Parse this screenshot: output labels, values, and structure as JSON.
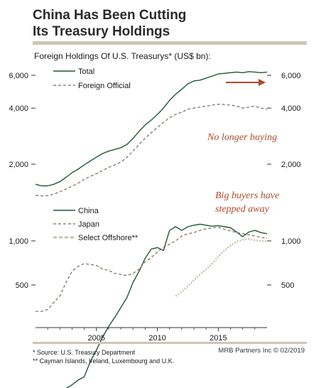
{
  "header": {
    "title_line1": "China Has Been Cutting",
    "title_line2": "Its Treasury Holdings",
    "subtitle": "Foreign Holdings Of U.S. Treasurys* (US$ bn):"
  },
  "colors": {
    "rule": "#cdc6b4",
    "total": "#1e5a32",
    "foreign_official": "#7a6a5a",
    "china": "#1e5a32",
    "japan": "#7a6a5a",
    "select_offshore": "#c9c2ae",
    "annotation": "#b0492a"
  },
  "annotations": {
    "no_longer_buying": "No longer buying",
    "big_buyers_line1": "Big buyers have",
    "big_buyers_line2": "stepped away"
  },
  "footnotes": {
    "note1": "*  Source: U.S. Treasury Department",
    "note2": "** Cayman Islands, Ireland, Luxembourg and U.K.",
    "credit": "MRB Partners Inc © 02/2019"
  },
  "chart_data": [
    {
      "type": "line",
      "scale": "log",
      "yticks": [
        2000,
        4000,
        6000
      ],
      "ytick_labels": [
        "2,000",
        "4,000",
        "6,000"
      ],
      "series": [
        {
          "name": "Total",
          "style": "solid",
          "x": [
            2000.0,
            2000.5,
            2001.0,
            2001.5,
            2002.0,
            2002.5,
            2003.0,
            2003.5,
            2004.0,
            2004.5,
            2005.0,
            2005.5,
            2006.0,
            2006.5,
            2007.0,
            2007.5,
            2008.0,
            2008.5,
            2009.0,
            2009.5,
            2010.0,
            2010.5,
            2011.0,
            2011.5,
            2012.0,
            2012.5,
            2013.0,
            2013.5,
            2014.0,
            2014.5,
            2015.0,
            2015.5,
            2016.0,
            2016.5,
            2017.0,
            2017.5,
            2018.0,
            2018.5,
            2019.0
          ],
          "y": [
            1560,
            1530,
            1530,
            1560,
            1610,
            1700,
            1800,
            1880,
            1980,
            2080,
            2180,
            2280,
            2350,
            2400,
            2450,
            2550,
            2750,
            3000,
            3250,
            3450,
            3700,
            4000,
            4400,
            4750,
            5050,
            5400,
            5600,
            5650,
            5800,
            5950,
            6100,
            6150,
            6200,
            6250,
            6200,
            6280,
            6250,
            6200,
            6250
          ]
        },
        {
          "name": "Foreign Official",
          "style": "dashed",
          "x": [
            2000.0,
            2000.5,
            2001.0,
            2001.5,
            2002.0,
            2002.5,
            2003.0,
            2003.5,
            2004.0,
            2004.5,
            2005.0,
            2005.5,
            2006.0,
            2006.5,
            2007.0,
            2007.5,
            2008.0,
            2008.5,
            2009.0,
            2009.5,
            2010.0,
            2010.5,
            2011.0,
            2011.5,
            2012.0,
            2012.5,
            2013.0,
            2013.5,
            2014.0,
            2014.5,
            2015.0,
            2015.5,
            2016.0,
            2016.5,
            2017.0,
            2017.5,
            2018.0,
            2018.5,
            2019.0
          ],
          "y": [
            1360,
            1350,
            1355,
            1380,
            1420,
            1470,
            1520,
            1580,
            1660,
            1720,
            1780,
            1850,
            1920,
            1980,
            2050,
            2180,
            2350,
            2550,
            2760,
            2950,
            3150,
            3350,
            3550,
            3700,
            3800,
            3950,
            4000,
            4050,
            4100,
            4150,
            4200,
            4180,
            4150,
            4100,
            4000,
            4050,
            4100,
            4000,
            3950
          ]
        }
      ]
    },
    {
      "type": "line",
      "scale": "log",
      "yticks": [
        500,
        1000
      ],
      "ytick_labels": [
        "500",
        "1,000"
      ],
      "xticks": [
        2005,
        2010,
        2015
      ],
      "xtick_labels": [
        "2005",
        "2010",
        "2015"
      ],
      "series": [
        {
          "name": "China",
          "style": "solid",
          "x": [
            2000.0,
            2000.5,
            2001.0,
            2001.5,
            2002.0,
            2002.5,
            2003.0,
            2003.5,
            2004.0,
            2004.5,
            2005.0,
            2005.5,
            2006.0,
            2006.5,
            2007.0,
            2007.5,
            2008.0,
            2008.5,
            2009.0,
            2009.5,
            2010.0,
            2010.5,
            2011.0,
            2011.5,
            2012.0,
            2012.5,
            2013.0,
            2013.5,
            2014.0,
            2014.5,
            2015.0,
            2015.5,
            2016.0,
            2016.5,
            2017.0,
            2017.5,
            2018.0,
            2018.5,
            2019.0
          ],
          "y": [
            80,
            82,
            84,
            88,
            92,
            98,
            104,
            112,
            118,
            150,
            180,
            220,
            260,
            300,
            350,
            410,
            520,
            620,
            760,
            880,
            900,
            860,
            1180,
            1250,
            1180,
            1250,
            1280,
            1300,
            1280,
            1260,
            1270,
            1250,
            1230,
            1150,
            1070,
            1150,
            1180,
            1140,
            1120
          ]
        },
        {
          "name": "Japan",
          "style": "dashed",
          "x": [
            2000.0,
            2000.5,
            2001.0,
            2001.5,
            2002.0,
            2002.5,
            2003.0,
            2003.5,
            2004.0,
            2004.5,
            2005.0,
            2005.5,
            2006.0,
            2006.5,
            2007.0,
            2007.5,
            2008.0,
            2008.5,
            2009.0,
            2009.5,
            2010.0,
            2010.5,
            2011.0,
            2011.5,
            2012.0,
            2012.5,
            2013.0,
            2013.5,
            2014.0,
            2014.5,
            2015.0,
            2015.5,
            2016.0,
            2016.5,
            2017.0,
            2017.5,
            2018.0,
            2018.5,
            2019.0
          ],
          "y": [
            330,
            330,
            340,
            380,
            420,
            520,
            620,
            670,
            700,
            690,
            680,
            640,
            630,
            600,
            590,
            580,
            600,
            640,
            720,
            770,
            840,
            900,
            950,
            1000,
            1080,
            1120,
            1140,
            1180,
            1210,
            1230,
            1240,
            1200,
            1170,
            1140,
            1120,
            1100,
            1080,
            1060,
            1040
          ]
        },
        {
          "name": "Select Offshore**",
          "style": "dotted",
          "x": [
            2011.5,
            2012.0,
            2012.5,
            2013.0,
            2013.5,
            2014.0,
            2014.5,
            2015.0,
            2015.5,
            2016.0,
            2016.5,
            2017.0,
            2017.5,
            2018.0,
            2018.5,
            2019.0
          ],
          "y": [
            420,
            450,
            490,
            540,
            590,
            640,
            700,
            780,
            860,
            930,
            990,
            1020,
            1030,
            1010,
            1000,
            990
          ]
        }
      ]
    }
  ]
}
